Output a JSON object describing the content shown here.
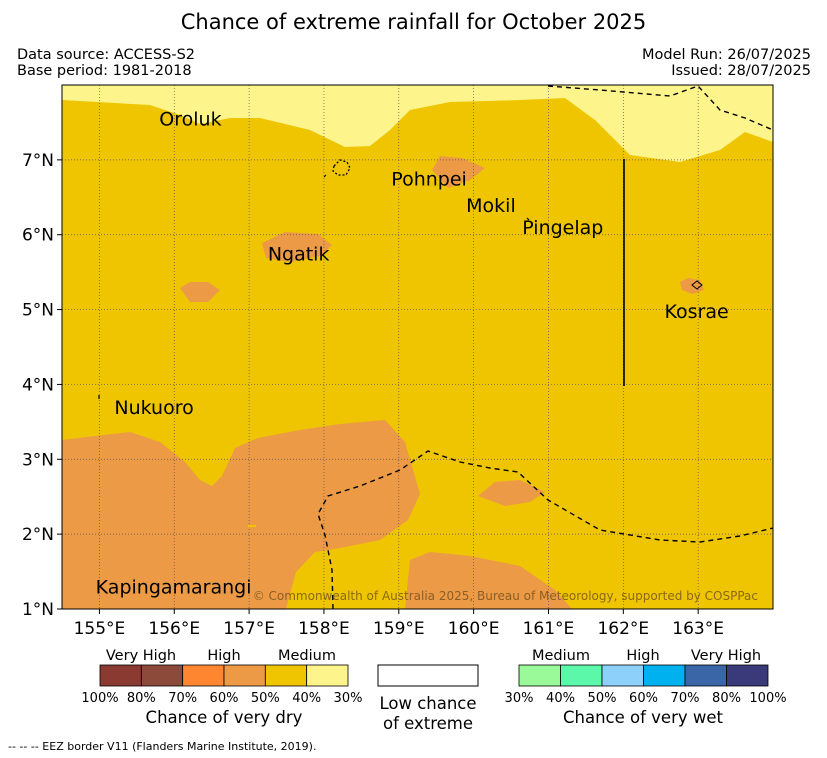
{
  "header": {
    "title": "Chance of extreme rainfall for October 2025",
    "data_source": "Data source: ACCESS-S2",
    "base_period": "Base period: 1981-2018",
    "model_run": "Model Run: 26/07/2025",
    "issued": "Issued: 28/07/2025"
  },
  "map": {
    "lon_ticks": [
      "155°E",
      "156°E",
      "157°E",
      "158°E",
      "159°E",
      "160°E",
      "161°E",
      "162°E",
      "163°E"
    ],
    "lat_ticks": [
      "7°N",
      "6°N",
      "5°N",
      "4°N",
      "3°N",
      "2°N",
      "1°N"
    ],
    "lon_range": [
      154.5,
      164
    ],
    "lat_range": [
      1,
      8
    ],
    "places": [
      {
        "name": "Oroluk",
        "lon": 155.8,
        "lat": 7.55
      },
      {
        "name": "Pohnpei",
        "lon": 158.9,
        "lat": 6.75
      },
      {
        "name": "Mokil",
        "lon": 159.9,
        "lat": 6.4
      },
      {
        "name": "Pingelap",
        "lon": 160.65,
        "lat": 6.1
      },
      {
        "name": "Ngatik",
        "lon": 157.25,
        "lat": 5.75
      },
      {
        "name": "Kosrae",
        "lon": 162.55,
        "lat": 4.98
      },
      {
        "name": "Nukuoro",
        "lon": 155.2,
        "lat": 3.7
      },
      {
        "name": "Kapingamarangi",
        "lon": 154.95,
        "lat": 1.3
      }
    ],
    "copyright": "© Commonwealth of Australia 2025, Bureau of Meteorology, supported by COSPPac",
    "colors": {
      "medium_dry": "#eec500",
      "high_dry": "#ec9a46",
      "low_medium_dry": "#fdf58c",
      "grid": "#555555",
      "eez": "#000000"
    }
  },
  "legend": {
    "dry": {
      "categories": [
        "Very High",
        "High",
        "Medium"
      ],
      "colors": [
        "#8b3a32",
        "#8b4a3a",
        "#fe8630",
        "#ec9a46",
        "#eec500",
        "#fdf58c"
      ],
      "percent_labels": [
        "100%",
        "80%",
        "70%",
        "60%",
        "50%",
        "40%",
        "30%"
      ],
      "title": "Chance of very dry"
    },
    "low": {
      "title_line1": "Low chance",
      "title_line2": "of extreme",
      "color": "#ffffff"
    },
    "wet": {
      "categories": [
        "Medium",
        "High",
        "Very High"
      ],
      "colors": [
        "#9afa9a",
        "#5cf8aa",
        "#8dd0fa",
        "#00b1f0",
        "#3a66a8",
        "#3a3a7a"
      ],
      "percent_labels": [
        "30%",
        "40%",
        "50%",
        "60%",
        "70%",
        "80%",
        "100%"
      ],
      "title": "Chance of very wet"
    }
  },
  "footer": {
    "eez_note": "--  --  -- EEZ border V11 (Flanders Marine Institute, 2019)."
  }
}
